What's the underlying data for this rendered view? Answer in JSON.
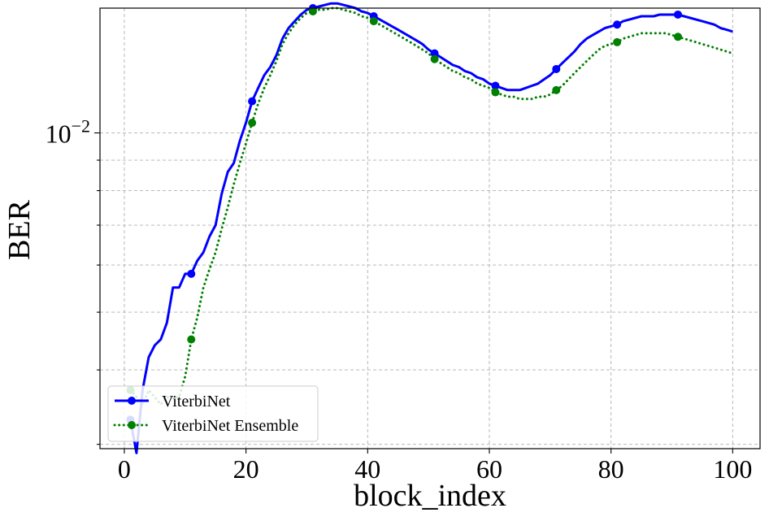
{
  "chart_data": {
    "type": "line",
    "xlabel": "block_index",
    "ylabel": "BER",
    "x_ticks": [
      0,
      20,
      40,
      60,
      80,
      100
    ],
    "y_tick_labels": [
      "10^-2"
    ],
    "y_tick_label_parts": {
      "base": "10",
      "exponent": "−2"
    },
    "y_scale": "log",
    "xlim": [
      -4,
      104.5
    ],
    "ylim": [
      0.00295,
      0.0162
    ],
    "grid": true,
    "legend_position": "lower-left",
    "series": [
      {
        "name": "ViterbiNet",
        "color": "#0000ff",
        "line_style": "solid",
        "marker": "circle",
        "marker_every": 10,
        "x": [
          1,
          2,
          3,
          4,
          5,
          6,
          7,
          8,
          9,
          10,
          11,
          12,
          13,
          14,
          15,
          16,
          17,
          18,
          19,
          20,
          21,
          22,
          23,
          24,
          25,
          26,
          27,
          28,
          29,
          30,
          31,
          32,
          33,
          34,
          35,
          36,
          37,
          38,
          39,
          40,
          41,
          42,
          43,
          44,
          45,
          46,
          47,
          48,
          49,
          50,
          51,
          52,
          53,
          54,
          55,
          56,
          57,
          58,
          59,
          60,
          61,
          62,
          63,
          64,
          65,
          66,
          67,
          68,
          69,
          70,
          71,
          72,
          73,
          74,
          75,
          76,
          77,
          78,
          79,
          80,
          81,
          82,
          83,
          84,
          85,
          86,
          87,
          88,
          89,
          90,
          91,
          92,
          93,
          94,
          95,
          96,
          97,
          98,
          99,
          100
        ],
        "y": [
          0.0033,
          0.0029,
          0.0037,
          0.0042,
          0.0044,
          0.0045,
          0.0048,
          0.0055,
          0.0055,
          0.0058,
          0.0058,
          0.0061,
          0.0063,
          0.0067,
          0.007,
          0.0079,
          0.0086,
          0.0089,
          0.0097,
          0.0104,
          0.0113,
          0.0119,
          0.0125,
          0.0129,
          0.0135,
          0.0144,
          0.015,
          0.0154,
          0.0158,
          0.0161,
          0.0162,
          0.0163,
          0.0164,
          0.0165,
          0.0165,
          0.0164,
          0.0163,
          0.0162,
          0.016,
          0.0159,
          0.0157,
          0.0155,
          0.0153,
          0.0151,
          0.0149,
          0.0147,
          0.0145,
          0.0143,
          0.0141,
          0.0138,
          0.0136,
          0.0134,
          0.0132,
          0.013,
          0.0129,
          0.0127,
          0.0126,
          0.0124,
          0.0123,
          0.0121,
          0.012,
          0.0119,
          0.0118,
          0.0118,
          0.0118,
          0.0119,
          0.012,
          0.0121,
          0.0123,
          0.0125,
          0.0128,
          0.0131,
          0.0134,
          0.0137,
          0.0141,
          0.0144,
          0.0146,
          0.0148,
          0.015,
          0.0151,
          0.0152,
          0.0154,
          0.0155,
          0.0156,
          0.0157,
          0.0157,
          0.0157,
          0.0158,
          0.0158,
          0.0158,
          0.0158,
          0.0157,
          0.0156,
          0.0155,
          0.0154,
          0.0153,
          0.0152,
          0.015,
          0.0149,
          0.0148
        ]
      },
      {
        "name": "ViterbiNet Ensemble",
        "color": "#008000",
        "line_style": "dotted",
        "marker": "circle",
        "marker_every": 10,
        "x": [
          1,
          2,
          3,
          4,
          5,
          6,
          7,
          8,
          9,
          10,
          11,
          12,
          13,
          14,
          15,
          16,
          17,
          18,
          19,
          20,
          21,
          22,
          23,
          24,
          25,
          26,
          27,
          28,
          29,
          30,
          31,
          32,
          33,
          34,
          35,
          36,
          37,
          38,
          39,
          40,
          41,
          42,
          43,
          44,
          45,
          46,
          47,
          48,
          49,
          50,
          51,
          52,
          53,
          54,
          55,
          56,
          57,
          58,
          59,
          60,
          61,
          62,
          63,
          64,
          65,
          66,
          67,
          68,
          69,
          70,
          71,
          72,
          73,
          74,
          75,
          76,
          77,
          78,
          79,
          80,
          81,
          82,
          83,
          84,
          85,
          86,
          87,
          88,
          89,
          90,
          91,
          92,
          93,
          94,
          95,
          96,
          97,
          98,
          99,
          100
        ],
        "y": [
          0.0037,
          0.0036,
          0.0035,
          0.0037,
          0.0036,
          0.0035,
          0.0036,
          0.0036,
          0.0036,
          0.0039,
          0.0045,
          0.0049,
          0.0055,
          0.0059,
          0.0063,
          0.0069,
          0.0075,
          0.0082,
          0.0089,
          0.0096,
          0.0104,
          0.0112,
          0.0119,
          0.0125,
          0.0132,
          0.0141,
          0.0147,
          0.0152,
          0.0156,
          0.0159,
          0.016,
          0.0161,
          0.0161,
          0.0162,
          0.0162,
          0.0161,
          0.016,
          0.0159,
          0.0157,
          0.0156,
          0.0154,
          0.0152,
          0.015,
          0.0148,
          0.0146,
          0.0144,
          0.0142,
          0.014,
          0.0138,
          0.0136,
          0.0133,
          0.0131,
          0.0129,
          0.0127,
          0.0126,
          0.0124,
          0.0123,
          0.0121,
          0.012,
          0.0119,
          0.0117,
          0.0116,
          0.0115,
          0.0115,
          0.0114,
          0.0114,
          0.0114,
          0.0115,
          0.0115,
          0.0116,
          0.0118,
          0.012,
          0.0123,
          0.0126,
          0.0129,
          0.0132,
          0.0135,
          0.0138,
          0.014,
          0.0141,
          0.0142,
          0.0144,
          0.0145,
          0.0146,
          0.0147,
          0.0147,
          0.0147,
          0.0147,
          0.0147,
          0.0146,
          0.0145,
          0.0144,
          0.0143,
          0.0142,
          0.0141,
          0.014,
          0.0139,
          0.0138,
          0.0137,
          0.0136
        ]
      }
    ]
  }
}
